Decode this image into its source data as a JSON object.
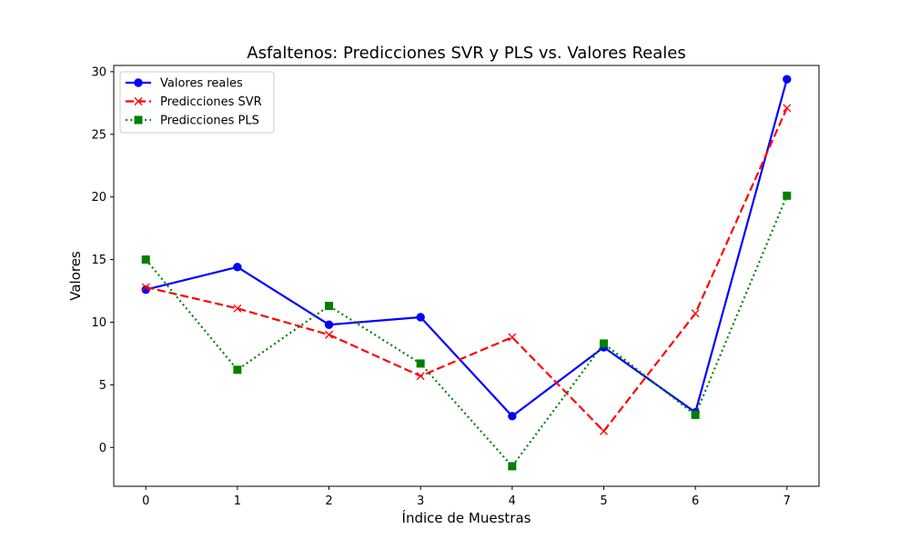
{
  "chart_data": {
    "type": "line",
    "title": "Asfaltenos: Predicciones SVR y PLS vs. Valores Reales",
    "xlabel": "Índice de Muestras",
    "ylabel": "Valores",
    "x": [
      0,
      1,
      2,
      3,
      4,
      5,
      6,
      7
    ],
    "xticks": [
      "0",
      "1",
      "2",
      "3",
      "4",
      "5",
      "6",
      "7"
    ],
    "yticks": [
      "0",
      "5",
      "10",
      "15",
      "20",
      "25",
      "30"
    ],
    "xlim": [
      -0.35,
      7.35
    ],
    "ylim": [
      -3.1,
      30.5
    ],
    "grid": false,
    "legend_position": "upper-left",
    "series": [
      {
        "name": "Valores reales",
        "values": [
          12.6,
          14.4,
          9.8,
          10.4,
          2.5,
          8.0,
          2.8,
          29.4
        ],
        "color": "#0000ff",
        "linestyle": "solid",
        "marker": "circle"
      },
      {
        "name": "Predicciones SVR",
        "values": [
          12.8,
          11.1,
          9.0,
          5.7,
          8.8,
          1.3,
          10.7,
          27.1
        ],
        "color": "#ff0000",
        "linestyle": "dashed",
        "marker": "x"
      },
      {
        "name": "Predicciones PLS",
        "values": [
          15.0,
          6.2,
          11.3,
          6.7,
          -1.5,
          8.3,
          2.6,
          20.1
        ],
        "color": "#008000",
        "linestyle": "dotted",
        "marker": "square"
      }
    ]
  }
}
